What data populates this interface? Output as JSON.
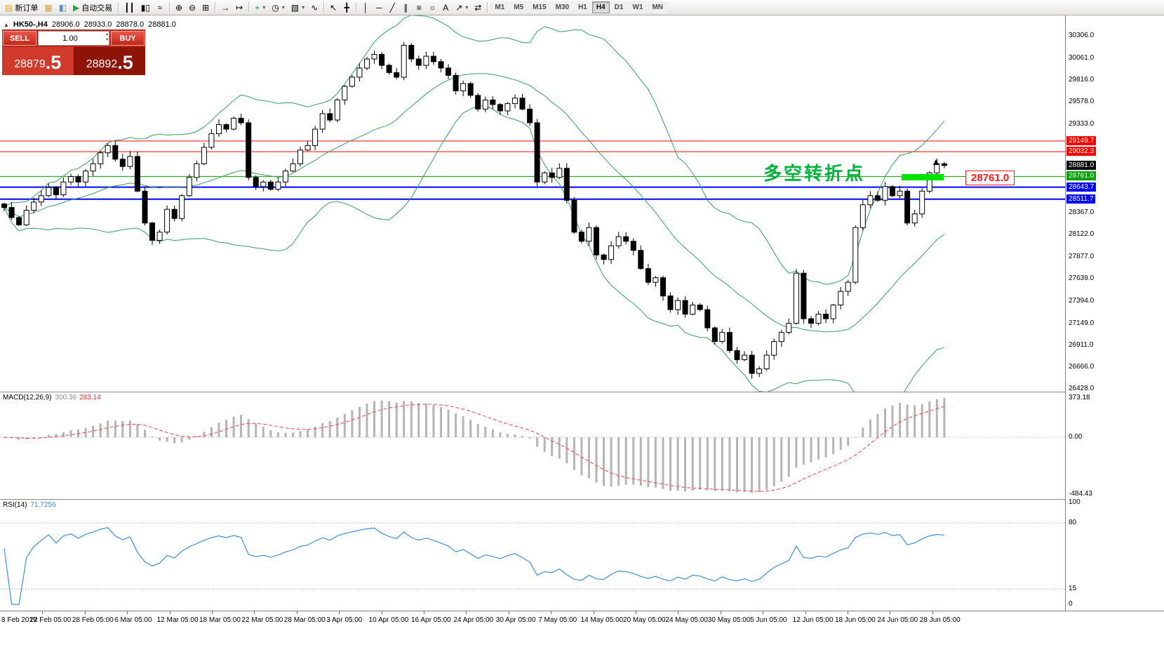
{
  "toolbar": {
    "items": [
      {
        "name": "new-order-button",
        "label": "新订单",
        "glyph": "▤",
        "glyph_color": "#d9a62e"
      },
      {
        "name": "metaeditor-button",
        "glyph": "▦",
        "glyph_color": "#caa53f"
      },
      {
        "name": "terminal-button",
        "glyph": "◧",
        "glyph_color": "#5b8dd6"
      },
      {
        "name": "autotrading-button",
        "label": "自动交易",
        "glyph": "▶",
        "glyph_color": "#2e9e3f"
      },
      {
        "sep": true
      },
      {
        "name": "bars-chart-button",
        "glyph": "┃┃"
      },
      {
        "name": "candlestick-chart-button",
        "glyph": "▮▯"
      },
      {
        "name": "line-chart-button",
        "glyph": "≈"
      },
      {
        "sep": true
      },
      {
        "name": "zoom-in-button",
        "glyph": "⊕"
      },
      {
        "name": "zoom-out-button",
        "glyph": "⊖"
      },
      {
        "name": "tile-windows-button",
        "glyph": "⊞"
      },
      {
        "sep": true
      },
      {
        "name": "auto-scroll-button",
        "glyph": "→"
      },
      {
        "name": "chart-shift-button",
        "glyph": "↦"
      },
      {
        "sep": true
      },
      {
        "name": "new-chart-button",
        "glyph": "+",
        "glyph_color": "#1d9e3a",
        "caret": true
      },
      {
        "name": "periods-button",
        "glyph": "◷",
        "caret": true
      },
      {
        "name": "templates-button",
        "glyph": "▧",
        "caret": true
      },
      {
        "name": "indicators-button",
        "glyph": "∿"
      },
      {
        "sep": true
      },
      {
        "name": "cursor-button",
        "glyph": "↖"
      },
      {
        "name": "crosshair-button",
        "glyph": "╋"
      },
      {
        "sep": true
      },
      {
        "name": "vertical-line-button",
        "glyph": "│"
      },
      {
        "name": "horizontal-line-button",
        "glyph": "─"
      },
      {
        "name": "trendline-button",
        "glyph": "╱"
      },
      {
        "name": "equidistant-channel-button",
        "glyph": "∥"
      },
      {
        "name": "fibonacci-button",
        "glyph": "≡"
      },
      {
        "name": "shapes-button",
        "glyph": "○"
      },
      {
        "name": "text-button",
        "glyph": "A"
      },
      {
        "name": "arrows-button",
        "glyph": "↗",
        "caret": true
      },
      {
        "name": "cycle-lines-button",
        "glyph": "⇄"
      },
      {
        "sep": true
      }
    ],
    "timeframes": [
      "M1",
      "M5",
      "M15",
      "M30",
      "H1",
      "H4",
      "D1",
      "W1",
      "MN"
    ],
    "active_timeframe": "H4"
  },
  "chart_header": {
    "symbol": "HK50-,H4",
    "open": "28906.0",
    "high": "28933.0",
    "low": "28878.0",
    "close": "28881.0"
  },
  "trade_panel": {
    "sell_label": "SELL",
    "buy_label": "BUY",
    "volume": "1.00",
    "sell_price_int": "28879",
    "sell_price_frac": ".5",
    "buy_price_int": "28892",
    "buy_price_frac": ".5"
  },
  "chart_data": {
    "type": "candlestick",
    "title": "HK50-,H4",
    "price_range": {
      "min": 26400,
      "max": 30527
    },
    "price_axis_labels": [
      "30306.0",
      "30061.0",
      "29816.0",
      "29578.0",
      "29333.0",
      "28367.0",
      "28122.0",
      "27877.0",
      "27639.0",
      "27394.0",
      "27149.0",
      "26911.0",
      "26666.0",
      "26428.0"
    ],
    "closes": [
      28420,
      28310,
      28230,
      28390,
      28480,
      28550,
      28640,
      28560,
      28700,
      28760,
      28700,
      28820,
      28900,
      29020,
      29100,
      28950,
      28870,
      28980,
      28600,
      28250,
      28060,
      28150,
      28400,
      28300,
      28550,
      28750,
      28900,
      29080,
      29230,
      29330,
      29280,
      29400,
      29350,
      28750,
      28650,
      28700,
      28620,
      28700,
      28820,
      28900,
      29050,
      29100,
      29280,
      29450,
      29380,
      29600,
      29750,
      29850,
      29950,
      30050,
      30100,
      29980,
      29900,
      29850,
      30200,
      30050,
      29980,
      30080,
      30020,
      29950,
      29870,
      29700,
      29780,
      29650,
      29500,
      29600,
      29550,
      29480,
      29560,
      29620,
      29500,
      29350,
      28700,
      28800,
      28750,
      28850,
      28500,
      28150,
      28050,
      28200,
      27900,
      27850,
      28000,
      28100,
      28050,
      27950,
      27750,
      27600,
      27650,
      27450,
      27300,
      27400,
      27250,
      27350,
      27300,
      27100,
      26950,
      27050,
      26850,
      26750,
      26800,
      26600,
      26650,
      26800,
      26950,
      27050,
      27150,
      27700,
      27200,
      27150,
      27250,
      27200,
      27350,
      27500,
      27600,
      28200,
      28450,
      28550,
      28500,
      28650,
      28550,
      28600,
      28250,
      28350,
      28600,
      28800,
      28900,
      28881
    ],
    "bollinger": {
      "period": 20,
      "deviation": 2,
      "color": "#35a05c"
    },
    "hlines": [
      {
        "price": 29149.7,
        "color": "#ff0000",
        "width": 1
      },
      {
        "price": 29032.3,
        "color": "#ff0000",
        "width": 1
      },
      {
        "price": 28761.0,
        "color": "#00a000",
        "width": 1
      },
      {
        "price": 28643.7,
        "color": "#0000ff",
        "width": 2
      },
      {
        "price": 28511.7,
        "color": "#0000ff",
        "width": 2
      }
    ],
    "badges": [
      {
        "text": "29149.7",
        "price": 29149.7,
        "color": "#ff0000"
      },
      {
        "text": "29032.3",
        "price": 29032.3,
        "color": "#ff0000"
      },
      {
        "text": "28881.0",
        "price": 28881.0,
        "color": "#000000"
      },
      {
        "text": "28761.0",
        "price": 28761.0,
        "color": "#00a000"
      },
      {
        "text": "28643.7",
        "price": 28643.7,
        "color": "#0000ff"
      },
      {
        "text": "28511.7",
        "price": 28511.7,
        "color": "#0000ff"
      }
    ],
    "annotation": {
      "text": "多空转折点",
      "color": "#00b13c"
    },
    "price_tag": {
      "text": "28761.0",
      "color": "#ff1a1a"
    },
    "macd": {
      "label": "MACD(12,26,9)",
      "value1": "300.36",
      "value2": "283.14",
      "axis_labels": [
        "373.18",
        "0.00",
        "-484.43"
      ],
      "fast": 12,
      "slow": 26,
      "signal": 9,
      "histogram_color": "#b4b4b4",
      "signal_color": "#ff4040"
    },
    "rsi": {
      "label": "RSI(14)",
      "value": "71.7256",
      "axis_labels": [
        "100",
        "80",
        "15",
        "0"
      ],
      "period": 14,
      "levels": [
        80,
        15
      ],
      "line_color": "#3f8fd8"
    },
    "time_labels": [
      "8 Feb 2019",
      "22 Feb 05:00",
      "28 Feb 05:00",
      "6 Mar 05:00",
      "12 Mar 05:00",
      "18 Mar 05:00",
      "22 Mar 05:00",
      "28 Mar 05:00",
      "3 Apr 05:00",
      "10 Apr 05:00",
      "16 Apr 05:00",
      "24 Apr 05:00",
      "30 Apr 05:00",
      "7 May 05:00",
      "14 May 05:00",
      "20 May 05:00",
      "24 May 05:00",
      "30 May 05:00",
      "5 Jun 05:00",
      "12 Jun 05:00",
      "18 Jun 05:00",
      "24 Jun 05:00",
      "28 Jun 05:00"
    ]
  }
}
